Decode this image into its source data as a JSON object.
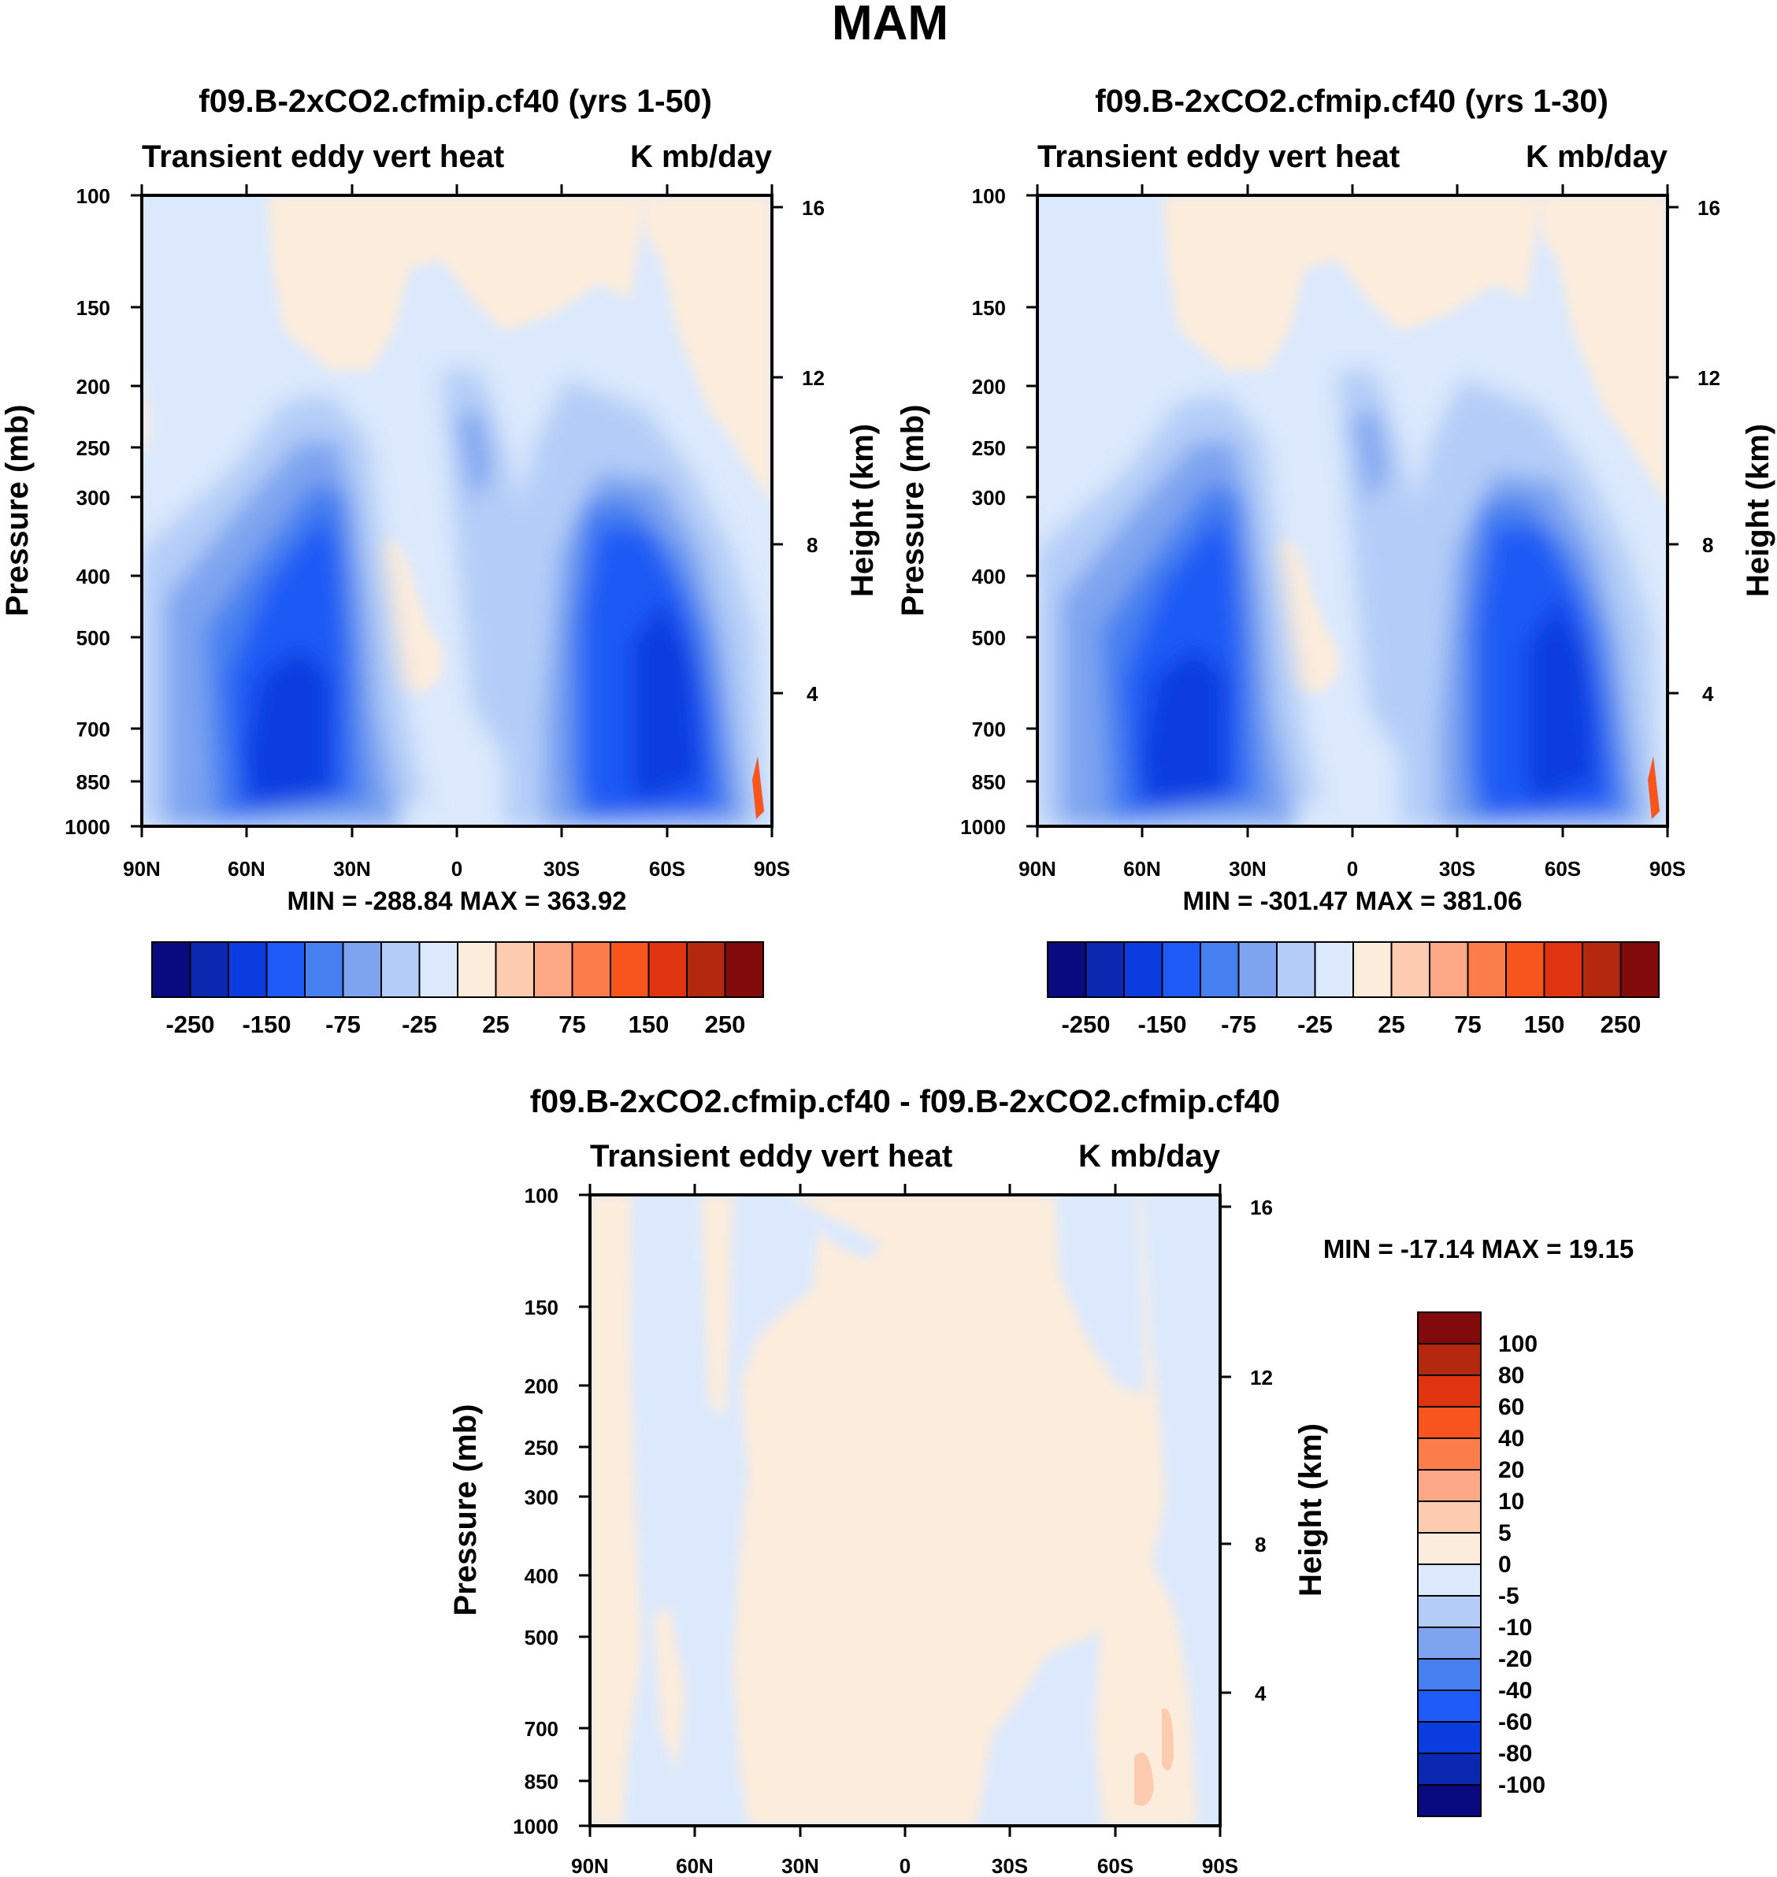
{
  "figure": {
    "title": "MAM",
    "colors": {
      "main_scale": [
        "#0a0a80",
        "#0a28b0",
        "#0a3ce0",
        "#1e5af5",
        "#4680f0",
        "#7ea4f0",
        "#b4cdf8",
        "#dce9fc",
        "#fcecdc",
        "#fccbb0",
        "#fca886",
        "#fb7d4c",
        "#f8541e",
        "#e03410",
        "#b42810",
        "#820a0a"
      ],
      "diff_scale": [
        "#0a0a80",
        "#0a28b0",
        "#0a3ce0",
        "#1e5af5",
        "#4680f0",
        "#7ea4f0",
        "#b4cdf8",
        "#dce9fc",
        "#fcecdc",
        "#fccbb0",
        "#fca886",
        "#fb7d4c",
        "#f8541e",
        "#e03410",
        "#b42810",
        "#820a0a"
      ]
    }
  },
  "chart_data": [
    {
      "type": "heatmap",
      "title": "f09.B-2xCO2.cfmip.cf40 (yrs 1-50)",
      "subtitle_left": "Transient eddy vert heat",
      "subtitle_right": "K mb/day",
      "ylabel": "Pressure (mb)",
      "ylabel_right": "Height (km)",
      "x_ticks": [
        "90N",
        "60N",
        "30N",
        "0",
        "30S",
        "60S",
        "90S"
      ],
      "y_ticks": [
        "100",
        "150",
        "200",
        "250",
        "300",
        "400",
        "500",
        "700",
        "850",
        "1000"
      ],
      "y_right_ticks": [
        "16",
        "12",
        "8",
        "4"
      ],
      "stats": "MIN = -288.84   MAX = 363.92",
      "colorbar_labels": [
        "-250",
        "-150",
        "-75",
        "-25",
        "25",
        "75",
        "150",
        "250"
      ],
      "colorbar_levels": [
        -250,
        -200,
        -150,
        -100,
        -75,
        -50,
        -25,
        0,
        25,
        50,
        75,
        100,
        150,
        200,
        250
      ],
      "min": -288.84,
      "max": 363.92
    },
    {
      "type": "heatmap",
      "title": "f09.B-2xCO2.cfmip.cf40 (yrs 1-30)",
      "subtitle_left": "Transient eddy vert heat",
      "subtitle_right": "K mb/day",
      "ylabel": "Pressure (mb)",
      "ylabel_right": "Height (km)",
      "x_ticks": [
        "90N",
        "60N",
        "30N",
        "0",
        "30S",
        "60S",
        "90S"
      ],
      "y_ticks": [
        "100",
        "150",
        "200",
        "250",
        "300",
        "400",
        "500",
        "700",
        "850",
        "1000"
      ],
      "y_right_ticks": [
        "16",
        "12",
        "8",
        "4"
      ],
      "stats": "MIN = -301.47   MAX = 381.06",
      "colorbar_labels": [
        "-250",
        "-150",
        "-75",
        "-25",
        "25",
        "75",
        "150",
        "250"
      ],
      "colorbar_levels": [
        -250,
        -200,
        -150,
        -100,
        -75,
        -50,
        -25,
        0,
        25,
        50,
        75,
        100,
        150,
        200,
        250
      ],
      "min": -301.47,
      "max": 381.06
    },
    {
      "type": "heatmap",
      "title": "f09.B-2xCO2.cfmip.cf40 - f09.B-2xCO2.cfmip.cf40",
      "subtitle_left": "Transient eddy vert heat",
      "subtitle_right": "K mb/day",
      "ylabel": "Pressure (mb)",
      "ylabel_right": "Height (km)",
      "x_ticks": [
        "90N",
        "60N",
        "30N",
        "0",
        "30S",
        "60S",
        "90S"
      ],
      "y_ticks": [
        "100",
        "150",
        "200",
        "250",
        "300",
        "400",
        "500",
        "700",
        "850",
        "1000"
      ],
      "y_right_ticks": [
        "16",
        "12",
        "8",
        "4"
      ],
      "stats": "MIN = -17.14   MAX =  19.15",
      "colorbar_labels": [
        "100",
        "80",
        "60",
        "40",
        "20",
        "10",
        "5",
        "0",
        "-5",
        "-10",
        "-20",
        "-40",
        "-60",
        "-80",
        "-100"
      ],
      "colorbar_levels": [
        -100,
        -80,
        -60,
        -40,
        -20,
        -10,
        -5,
        0,
        5,
        10,
        20,
        40,
        60,
        80,
        100
      ],
      "min": -17.14,
      "max": 19.15
    }
  ]
}
